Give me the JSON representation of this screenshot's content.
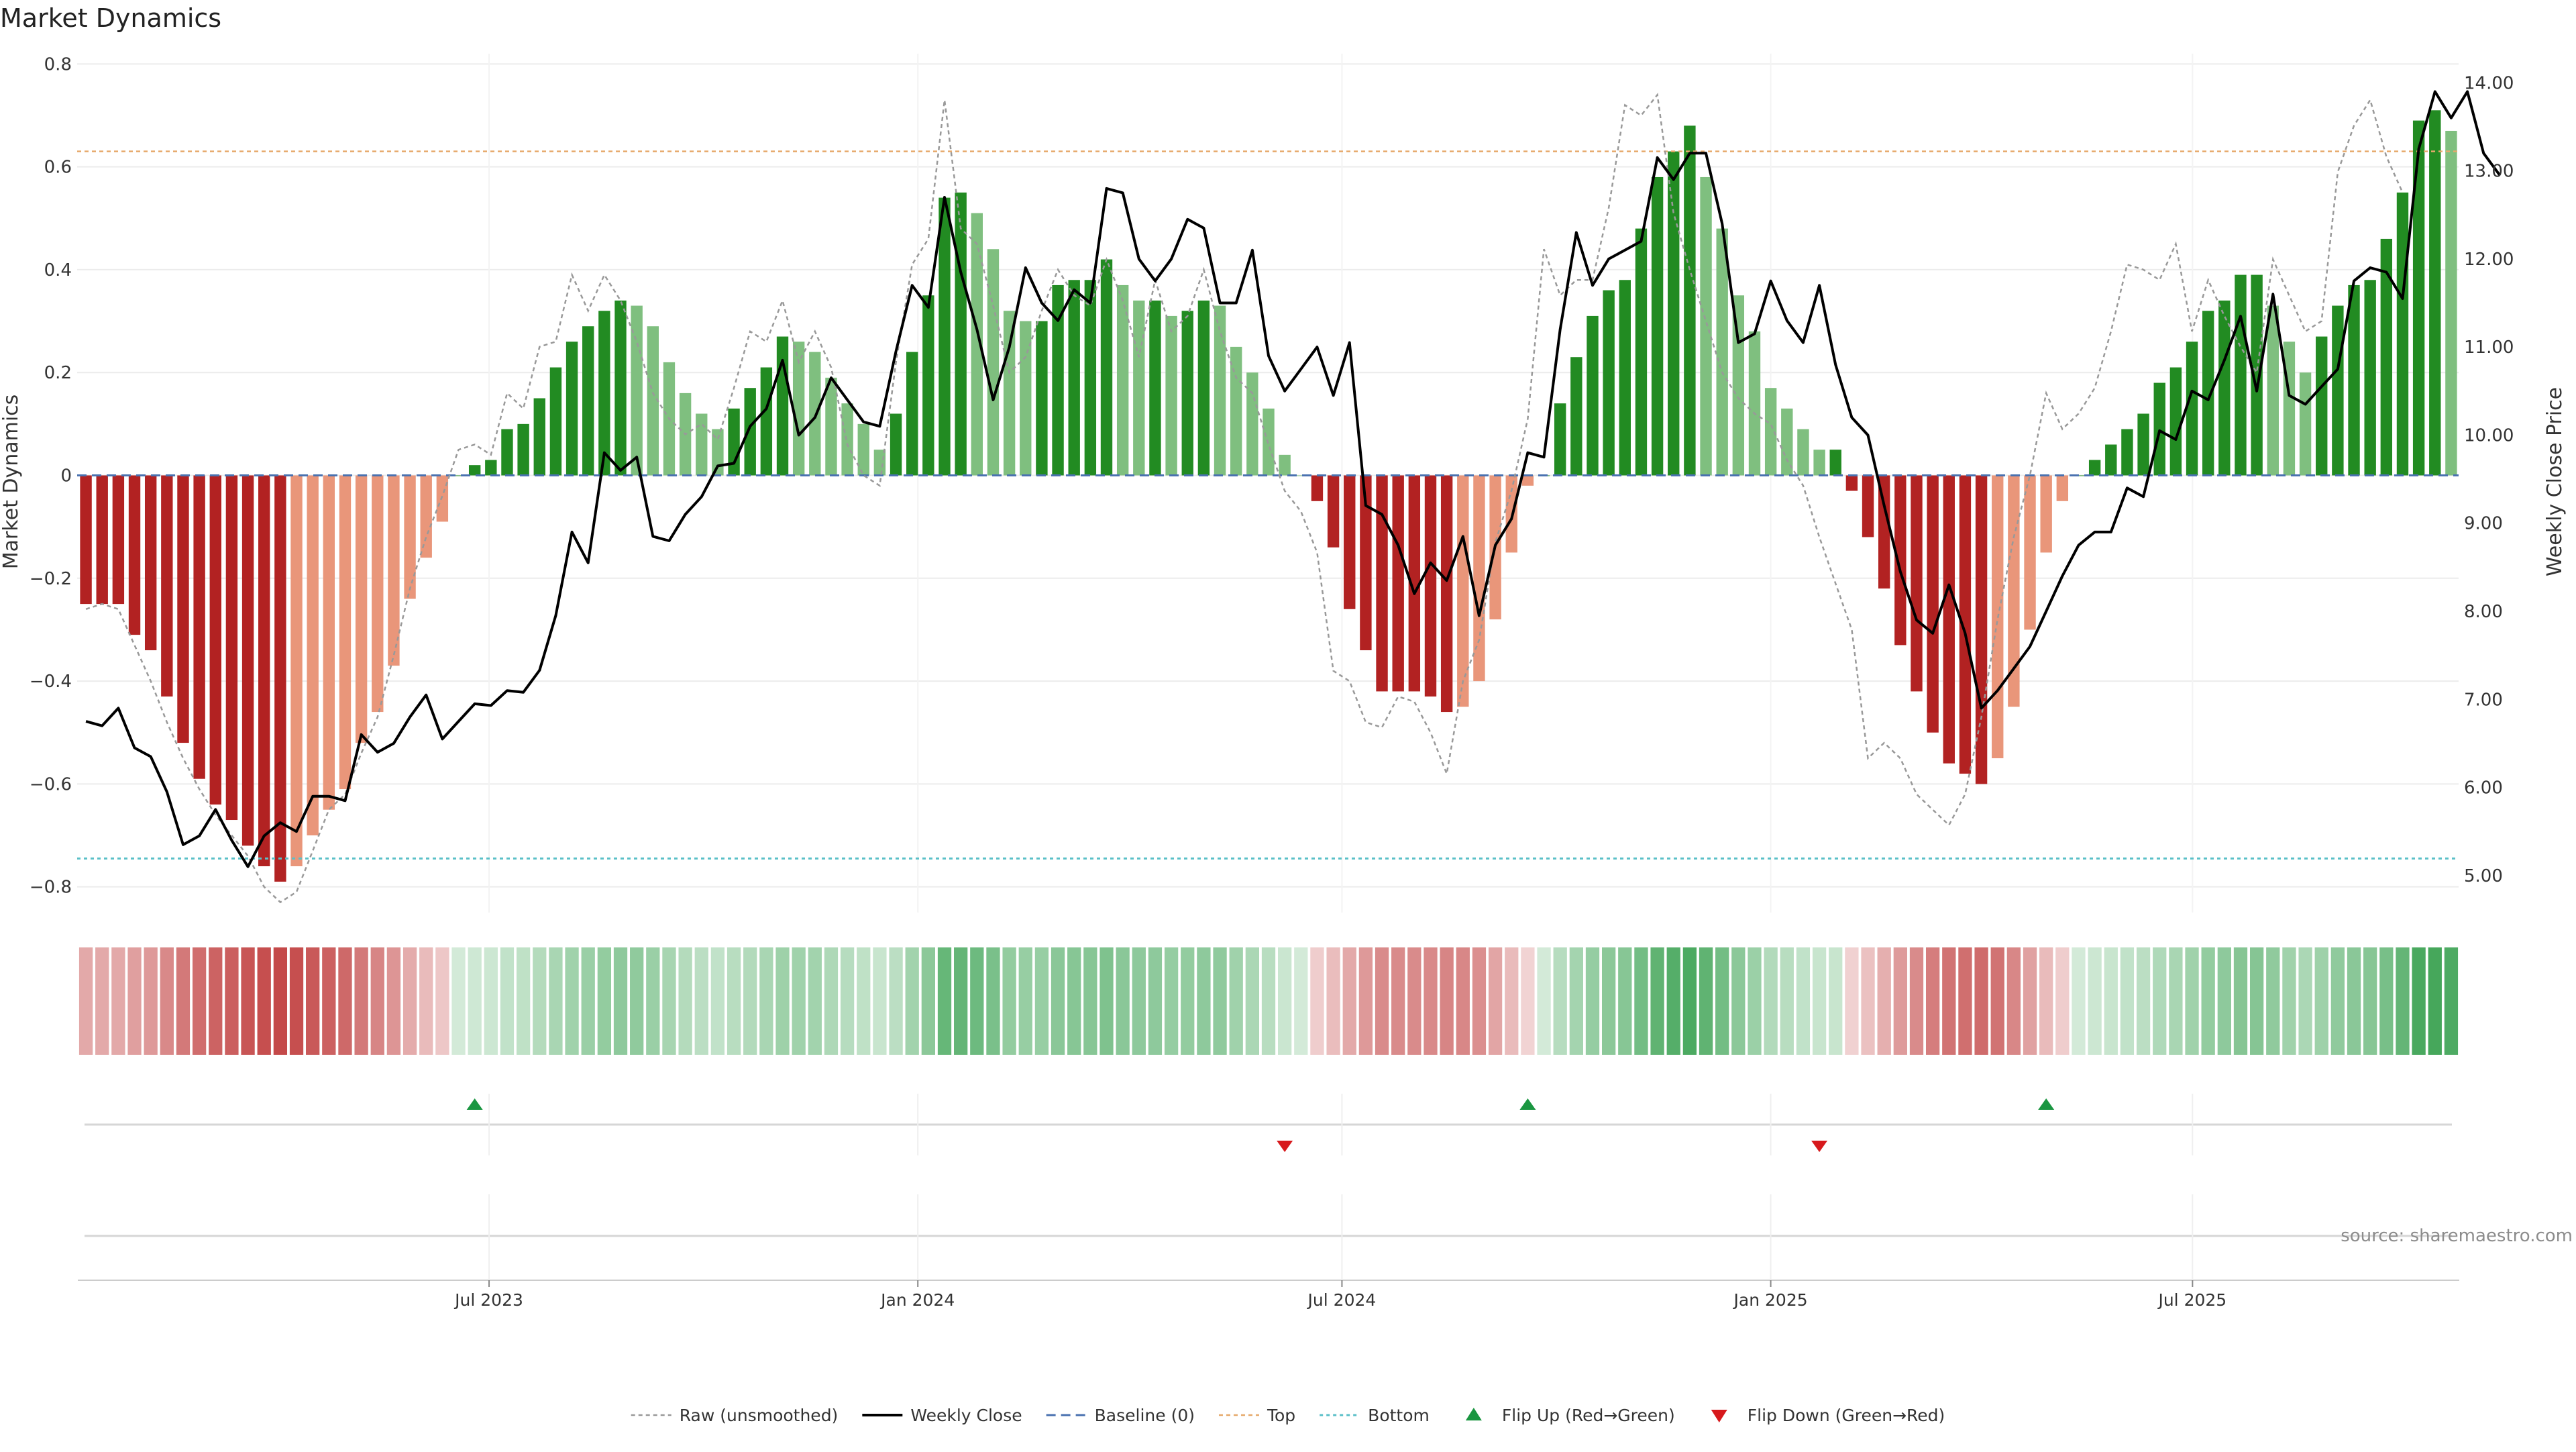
{
  "chart_data": {
    "type": "bar",
    "title": "Market Dynamics",
    "ylabel": "Market Dynamics",
    "y2label": "Weekly Close Price",
    "source": "source: sharemaestro.com",
    "ylim": [
      -0.85,
      0.82
    ],
    "y2lim": [
      4.58,
      14.33
    ],
    "y_ticks": [
      -0.8,
      -0.6,
      -0.4,
      -0.2,
      0,
      0.2,
      0.4,
      0.6,
      0.8
    ],
    "y_tick_labels": [
      "−0.8",
      "−0.6",
      "−0.4",
      "−0.2",
      "0",
      "0.2",
      "0.4",
      "0.6",
      "0.8"
    ],
    "y2_ticks": [
      5,
      6,
      7,
      8,
      9,
      10,
      11,
      12,
      13,
      14
    ],
    "y2_tick_labels": [
      "5.00",
      "6.00",
      "7.00",
      "8.00",
      "9.00",
      "10.00",
      "11.00",
      "12.00",
      "13.00",
      "14.00"
    ],
    "x_start": "2023-01-09",
    "x_end": "2025-10-20",
    "x_ticks": [
      "2023-07-01",
      "2024-01-01",
      "2024-07-01",
      "2025-01-01",
      "2025-07-01"
    ],
    "x_tick_labels": [
      "Jul 2023",
      "Jan 2024",
      "Jul 2024",
      "Jan 2025",
      "Jul 2025"
    ],
    "top_line": 0.63,
    "bottom_line": -0.745,
    "baseline": 0,
    "grid": true,
    "legend_placement": "bottom-center",
    "colors": {
      "strong_down": "#b22222",
      "weak_down": "#e9967a",
      "strong_up": "#228b22",
      "weak_up": "#7fbf7f",
      "price": "#000000",
      "raw": "#999999",
      "baseline": "#4a72b0",
      "top": "#e6a96b",
      "bottom": "#5bc0c8",
      "flip_up": "#1a9641",
      "flip_down": "#d7191c"
    },
    "series": [
      {
        "name": "Market Dynamics",
        "values": [
          -0.25,
          -0.25,
          -0.25,
          -0.31,
          -0.34,
          -0.43,
          -0.52,
          -0.59,
          -0.64,
          -0.67,
          -0.72,
          -0.76,
          -0.79,
          -0.76,
          -0.7,
          -0.65,
          -0.61,
          -0.52,
          -0.46,
          -0.37,
          -0.24,
          -0.16,
          -0.09,
          0.0,
          0.02,
          0.03,
          0.09,
          0.1,
          0.15,
          0.21,
          0.26,
          0.29,
          0.32,
          0.34,
          0.33,
          0.29,
          0.22,
          0.16,
          0.12,
          0.09,
          0.13,
          0.17,
          0.21,
          0.27,
          0.26,
          0.24,
          0.19,
          0.14,
          0.1,
          0.05,
          0.12,
          0.24,
          0.35,
          0.54,
          0.55,
          0.51,
          0.44,
          0.32,
          0.3,
          0.3,
          0.37,
          0.38,
          0.38,
          0.42,
          0.37,
          0.34,
          0.34,
          0.31,
          0.32,
          0.34,
          0.33,
          0.25,
          0.2,
          0.13,
          0.04,
          0.0,
          -0.05,
          -0.14,
          -0.26,
          -0.34,
          -0.42,
          -0.42,
          -0.42,
          -0.43,
          -0.46,
          -0.45,
          -0.4,
          -0.28,
          -0.15,
          -0.02,
          0.0,
          0.14,
          0.23,
          0.31,
          0.36,
          0.38,
          0.48,
          0.58,
          0.63,
          0.68,
          0.58,
          0.48,
          0.35,
          0.28,
          0.17,
          0.13,
          0.09,
          0.05,
          0.05,
          -0.03,
          -0.12,
          -0.22,
          -0.33,
          -0.42,
          -0.5,
          -0.56,
          -0.58,
          -0.6,
          -0.55,
          -0.45,
          -0.3,
          -0.15,
          -0.05,
          0.0,
          0.03,
          0.06,
          0.09,
          0.12,
          0.18,
          0.21,
          0.26,
          0.32,
          0.34,
          0.39,
          0.39,
          0.33,
          0.26,
          0.2,
          0.27,
          0.33,
          0.37,
          0.38,
          0.46,
          0.55,
          0.69,
          0.71,
          0.67
        ]
      },
      {
        "name": "Raw (unsmoothed)",
        "values": [
          -0.26,
          -0.25,
          -0.26,
          -0.33,
          -0.4,
          -0.48,
          -0.55,
          -0.61,
          -0.66,
          -0.7,
          -0.74,
          -0.8,
          -0.83,
          -0.81,
          -0.73,
          -0.65,
          -0.62,
          -0.54,
          -0.47,
          -0.35,
          -0.22,
          -0.12,
          -0.04,
          0.05,
          0.06,
          0.04,
          0.16,
          0.13,
          0.25,
          0.26,
          0.39,
          0.32,
          0.39,
          0.34,
          0.26,
          0.16,
          0.11,
          0.08,
          0.1,
          0.07,
          0.17,
          0.28,
          0.26,
          0.34,
          0.22,
          0.28,
          0.21,
          0.06,
          0.0,
          -0.02,
          0.22,
          0.41,
          0.46,
          0.73,
          0.48,
          0.45,
          0.33,
          0.2,
          0.23,
          0.32,
          0.4,
          0.35,
          0.33,
          0.42,
          0.34,
          0.23,
          0.38,
          0.28,
          0.31,
          0.4,
          0.28,
          0.19,
          0.16,
          0.06,
          -0.03,
          -0.07,
          -0.15,
          -0.38,
          -0.4,
          -0.48,
          -0.49,
          -0.43,
          -0.44,
          -0.5,
          -0.58,
          -0.4,
          -0.32,
          -0.13,
          -0.03,
          0.11,
          0.44,
          0.35,
          0.38,
          0.38,
          0.52,
          0.72,
          0.7,
          0.74,
          0.51,
          0.4,
          0.3,
          0.2,
          0.15,
          0.12,
          0.1,
          0.03,
          -0.02,
          -0.12,
          -0.21,
          -0.3,
          -0.55,
          -0.52,
          -0.55,
          -0.62,
          -0.65,
          -0.68,
          -0.62,
          -0.47,
          -0.28,
          -0.12,
          0.0,
          0.16,
          0.09,
          0.12,
          0.17,
          0.28,
          0.41,
          0.4,
          0.38,
          0.45,
          0.28,
          0.38,
          0.31,
          0.25,
          0.2,
          0.42,
          0.35,
          0.28,
          0.3,
          0.59,
          0.68,
          0.73,
          0.62,
          0.55
        ]
      },
      {
        "name": "Weekly Close",
        "values": [
          6.75,
          6.7,
          6.9,
          6.45,
          6.35,
          5.95,
          5.35,
          5.45,
          5.75,
          5.4,
          5.1,
          5.45,
          5.6,
          5.5,
          5.9,
          5.9,
          5.85,
          6.6,
          6.4,
          6.5,
          6.8,
          7.05,
          6.55,
          6.75,
          6.95,
          6.93,
          7.1,
          7.08,
          7.33,
          7.95,
          8.9,
          8.55,
          9.8,
          9.6,
          9.75,
          8.85,
          8.8,
          9.1,
          9.3,
          9.65,
          9.68,
          10.1,
          10.3,
          10.85,
          10.0,
          10.2,
          10.65,
          10.4,
          10.15,
          10.1,
          10.95,
          11.7,
          11.45,
          12.7,
          11.85,
          11.2,
          10.4,
          11.0,
          11.9,
          11.5,
          11.3,
          11.65,
          11.5,
          12.8,
          12.75,
          12.0,
          11.75,
          12.0,
          12.45,
          12.35,
          11.5,
          11.5,
          12.1,
          10.9,
          10.5,
          10.75,
          11.0,
          10.45,
          11.05,
          9.2,
          9.1,
          8.75,
          8.2,
          8.55,
          8.35,
          8.85,
          7.95,
          8.75,
          9.05,
          9.8,
          9.75,
          11.2,
          12.3,
          11.7,
          12.0,
          12.1,
          12.2,
          13.15,
          12.9,
          13.2,
          13.2,
          12.4,
          11.05,
          11.15,
          11.75,
          11.3,
          11.05,
          11.7,
          10.8,
          10.2,
          10.0,
          9.2,
          8.45,
          7.9,
          7.75,
          8.3,
          7.75,
          6.9,
          7.1,
          7.35,
          7.6,
          8.0,
          8.4,
          8.75,
          8.9,
          8.9,
          9.4,
          9.3,
          10.05,
          9.95,
          10.5,
          10.4,
          10.85,
          11.35,
          10.5,
          11.6,
          10.45,
          10.35,
          10.55,
          10.75,
          11.75,
          11.9,
          11.85,
          11.55,
          13.25,
          13.9,
          13.6,
          13.9,
          13.2,
          12.95
        ]
      }
    ],
    "flip_up_weeks": [
      24,
      89,
      121
    ],
    "flip_down_weeks": [
      74,
      107
    ],
    "legend": [
      "Raw (unsmoothed)",
      "Weekly Close",
      "Baseline (0)",
      "Top",
      "Bottom",
      "Flip Up (Red→Green)",
      "Flip Down (Green→Red)"
    ]
  }
}
